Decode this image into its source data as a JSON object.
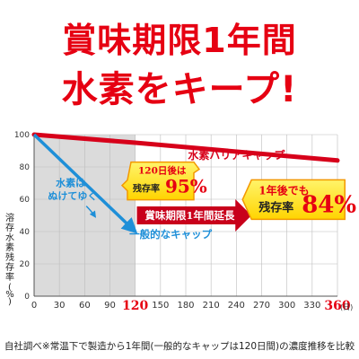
{
  "headline": {
    "line1": "賞味期限1年間",
    "line2": "水素をキープ!"
  },
  "colors": {
    "headline": "#e60012",
    "barrier_line": "#d7001a",
    "normal_line": "#1e8fd8",
    "callout_yellow": "#ffe300",
    "callout_yellow_edge": "#f39800",
    "shade": "#cfcfcf"
  },
  "chart_data": {
    "type": "line",
    "title": "",
    "xlabel": "",
    "ylabel": "溶存水素残存率(%)",
    "x_unit": "(日)",
    "xlim": [
      0,
      360
    ],
    "ylim": [
      0,
      100
    ],
    "x_ticks": [
      "0",
      "30",
      "60",
      "90",
      "120",
      "150",
      "180",
      "210",
      "240",
      "270",
      "300",
      "330",
      "360"
    ],
    "x_tick_values": [
      0,
      30,
      60,
      90,
      120,
      150,
      180,
      210,
      240,
      270,
      300,
      330,
      360
    ],
    "highlight_ticks": [
      "120",
      "360"
    ],
    "y_ticks": [
      "0",
      "20",
      "40",
      "60",
      "80",
      "100"
    ],
    "y_tick_values": [
      0,
      20,
      40,
      60,
      80,
      100
    ],
    "shaded_range": [
      0,
      120
    ],
    "grid": true,
    "series": [
      {
        "name": "水素バリアキャップ",
        "x": [
          0,
          120,
          360
        ],
        "y": [
          100,
          95,
          84
        ]
      },
      {
        "name": "一般的なキャップ",
        "x": [
          0,
          120
        ],
        "y": [
          100,
          40
        ]
      }
    ],
    "annotations": {
      "callout_120": {
        "pre": "120日後は",
        "label": "残存率",
        "value": "95%"
      },
      "callout_360": {
        "pre": "1年後でも",
        "label": "残存率",
        "value": "84%"
      },
      "extension_arrow": "賞味期限1年間延長",
      "escape_note": [
        "水素は",
        "ぬけてゆく"
      ]
    }
  },
  "footnote": "自社調べ※常温下で製造から1年間(一般的なキャップは120日間)の濃度推移を比較"
}
